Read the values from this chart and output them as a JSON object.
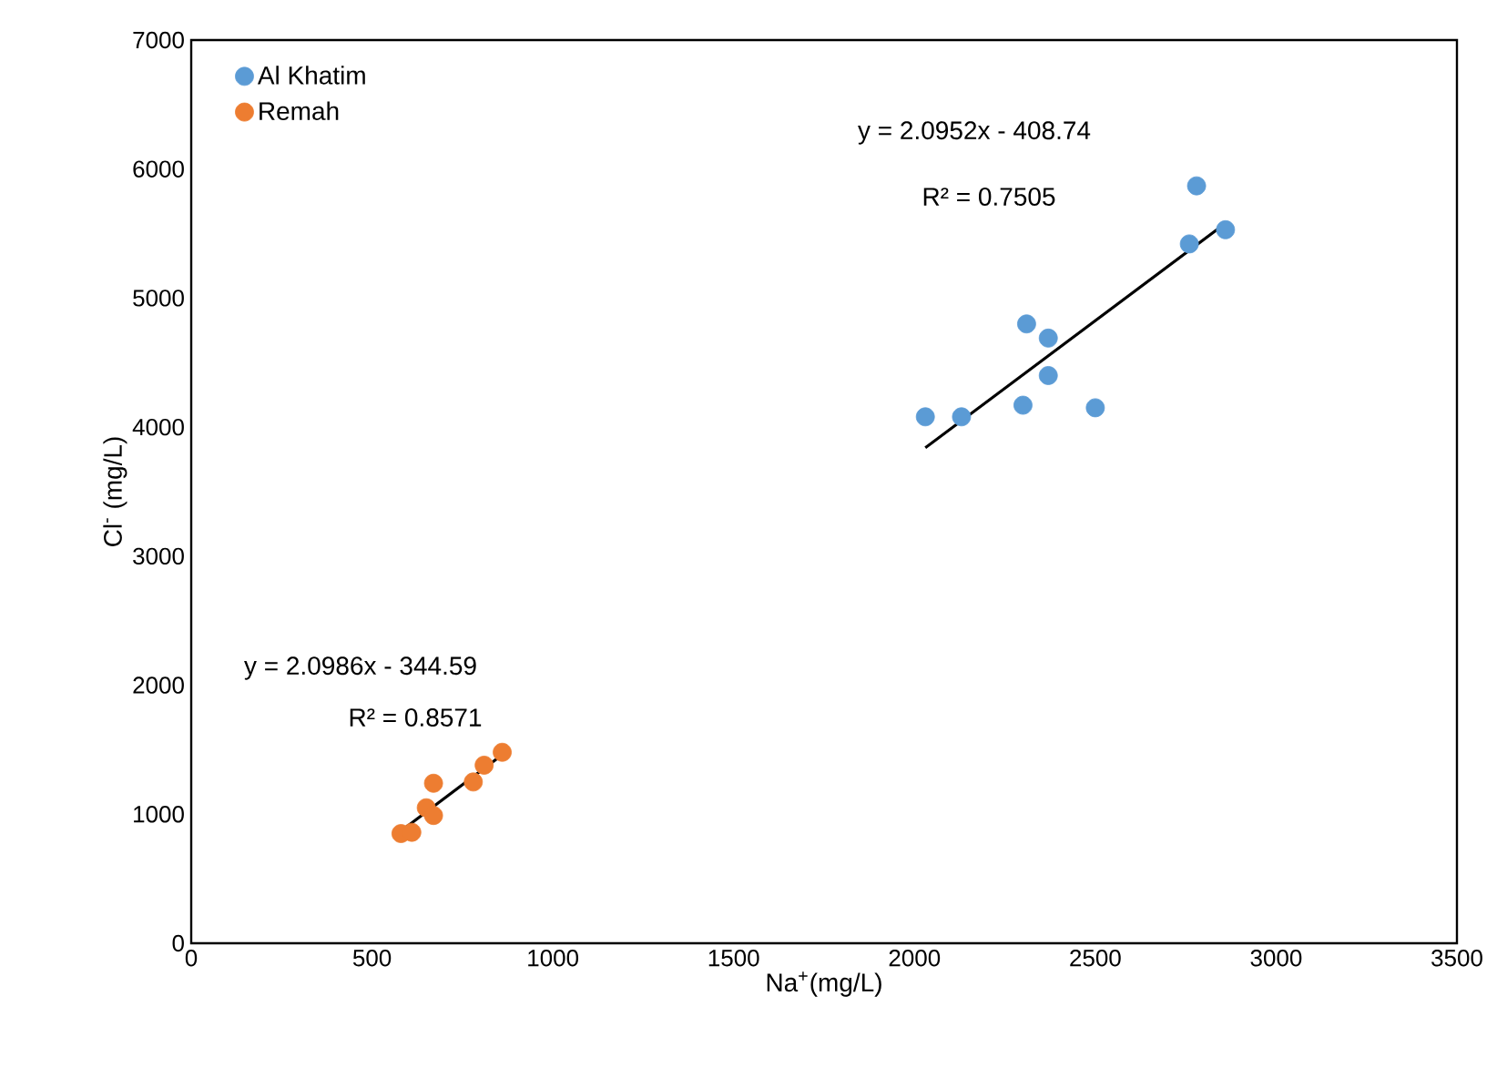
{
  "chart_data": {
    "type": "scatter",
    "xlabel": "Na$^{+}$(mg/L)",
    "ylabel": "Cl$^{-}$ (mg/L)",
    "xlim": [
      0,
      3500
    ],
    "ylim": [
      0,
      7000
    ],
    "xticks": [
      0,
      500,
      1000,
      1500,
      2000,
      2500,
      3000,
      3500
    ],
    "yticks": [
      0,
      1000,
      2000,
      3000,
      4000,
      5000,
      6000,
      7000
    ],
    "legend": "top left",
    "grid": false,
    "series": [
      {
        "name": "Al Khatim",
        "color": "#5b9bd5",
        "marker": "circle",
        "x": [
          2030,
          2130,
          2300,
          2310,
          2370,
          2370,
          2500,
          2760,
          2780,
          2860
        ],
        "values": [
          4080,
          4080,
          4170,
          4800,
          4690,
          4400,
          4150,
          5420,
          5870,
          5530
        ]
      },
      {
        "name": "Remah",
        "color": "#ed7d31",
        "marker": "circle",
        "x": [
          580,
          610,
          650,
          670,
          670,
          780,
          810,
          860
        ],
        "values": [
          850,
          860,
          1050,
          1240,
          990,
          1250,
          1380,
          1480
        ]
      },
      {
        "type": "line",
        "color": "#000000",
        "marker": "none",
        "x": [
          2030,
          2860
        ],
        "values": [
          3840,
          5580
        ]
      },
      {
        "type": "line",
        "color": "#000000",
        "marker": "none",
        "x": [
          580,
          860
        ],
        "values": [
          870,
          1460
        ]
      }
    ],
    "annotations": [
      "y = 2.0952x - 408.74",
      "R² = 0.7505",
      "y = 2.0986x - 344.59",
      "R² = 0.8571"
    ]
  }
}
